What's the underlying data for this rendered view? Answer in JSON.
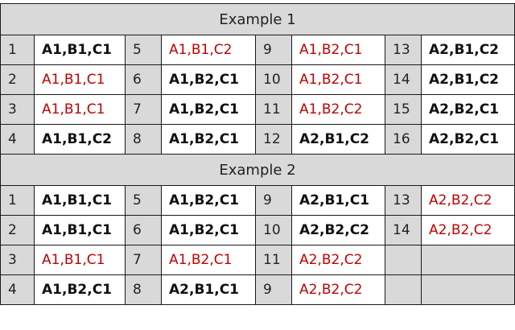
{
  "examples": [
    {
      "title": "Example 1",
      "rows": [
        [
          {
            "n": "1",
            "v": "A1,B1,C1",
            "red": false
          },
          {
            "n": "5",
            "v": "A1,B1,C2",
            "red": true
          },
          {
            "n": "9",
            "v": "A1,B2,C1",
            "red": true
          },
          {
            "n": "13",
            "v": "A2,B1,C2",
            "red": false
          }
        ],
        [
          {
            "n": "2",
            "v": "A1,B1,C1",
            "red": true
          },
          {
            "n": "6",
            "v": "A1,B2,C1",
            "red": false
          },
          {
            "n": "10",
            "v": "A1,B2,C1",
            "red": true
          },
          {
            "n": "14",
            "v": "A2,B1,C2",
            "red": false
          }
        ],
        [
          {
            "n": "3",
            "v": "A1,B1,C1",
            "red": true
          },
          {
            "n": "7",
            "v": "A1,B2,C1",
            "red": false
          },
          {
            "n": "11",
            "v": "A1,B2,C2",
            "red": true
          },
          {
            "n": "15",
            "v": "A2,B2,C1",
            "red": false
          }
        ],
        [
          {
            "n": "4",
            "v": "A1,B1,C2",
            "red": false
          },
          {
            "n": "8",
            "v": "A1,B2,C1",
            "red": false
          },
          {
            "n": "12",
            "v": "A2,B1,C2",
            "red": false
          },
          {
            "n": "16",
            "v": "A2,B2,C1",
            "red": false
          }
        ]
      ]
    },
    {
      "title": "Example 2",
      "rows": [
        [
          {
            "n": "1",
            "v": "A1,B1,C1",
            "red": false
          },
          {
            "n": "5",
            "v": "A1,B2,C1",
            "red": false
          },
          {
            "n": "9",
            "v": "A2,B1,C1",
            "red": false
          },
          {
            "n": "13",
            "v": "A2,B2,C2",
            "red": true
          }
        ],
        [
          {
            "n": "2",
            "v": "A1,B1,C1",
            "red": false
          },
          {
            "n": "6",
            "v": "A1,B2,C1",
            "red": false
          },
          {
            "n": "10",
            "v": "A2,B2,C2",
            "red": false
          },
          {
            "n": "14",
            "v": "A2,B2,C2",
            "red": true
          }
        ],
        [
          {
            "n": "3",
            "v": "A1,B1,C1",
            "red": true
          },
          {
            "n": "7",
            "v": "A1,B2,C1",
            "red": true
          },
          {
            "n": "11",
            "v": "A2,B2,C2",
            "red": true
          },
          null
        ],
        [
          {
            "n": "4",
            "v": "A1,B2,C1",
            "red": false
          },
          {
            "n": "8",
            "v": "A2,B1,C1",
            "red": false
          },
          {
            "n": "9",
            "v": "A2,B2,C2",
            "red": true
          },
          null
        ]
      ]
    }
  ],
  "colors": {
    "highlight": "#c00000",
    "header_bg": "#d9d9d9"
  }
}
